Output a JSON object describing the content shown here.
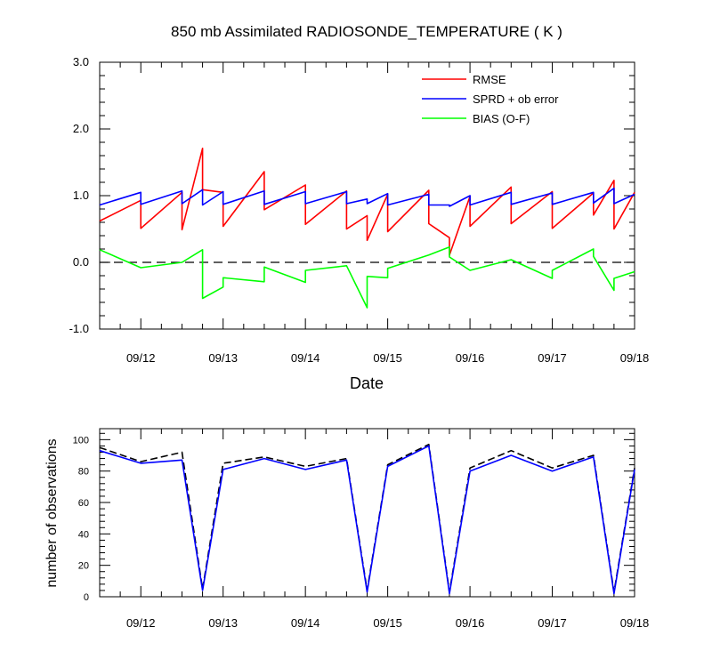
{
  "chart_data": [
    {
      "type": "line",
      "title": "850 mb Assimilated RADIOSONDE_TEMPERATURE ( K )",
      "xlabel": "Date",
      "ylabel": "",
      "xlim": [
        11.5,
        18.0
      ],
      "ylim": [
        -1.0,
        3.0
      ],
      "x_ticks": [
        12,
        13,
        14,
        15,
        16,
        17,
        18
      ],
      "x_tick_labels": [
        "09/12",
        "09/13",
        "09/14",
        "09/15",
        "09/16",
        "09/17",
        "09/18"
      ],
      "y_ticks": [
        -1,
        0,
        1,
        2,
        3
      ],
      "y_tick_labels": [
        "-1.0",
        "0.0",
        "1.0",
        "2.0",
        "3.0"
      ],
      "legend_position": "top-right",
      "reference_line": {
        "y": 0,
        "style": "dashed",
        "color": "#000000"
      },
      "grid": false,
      "series": [
        {
          "name": "RMSE",
          "color": "#ff0000",
          "x": [
            11.5,
            12.0,
            12.0,
            12.5,
            12.5,
            12.75,
            12.75,
            13.0,
            13.0,
            13.5,
            13.5,
            14.0,
            14.0,
            14.5,
            14.5,
            14.75,
            14.75,
            15.0,
            15.0,
            15.5,
            15.5,
            15.75,
            15.75,
            16.0,
            16.0,
            16.5,
            16.5,
            17.0,
            17.0,
            17.5,
            17.5,
            17.75,
            17.75,
            18.0
          ],
          "y": [
            0.62,
            0.93,
            0.51,
            1.05,
            0.49,
            1.71,
            1.09,
            1.05,
            0.54,
            1.36,
            0.79,
            1.16,
            0.57,
            1.07,
            0.5,
            0.7,
            0.33,
            1.02,
            0.46,
            1.08,
            0.58,
            0.37,
            0.11,
            0.99,
            0.54,
            1.13,
            0.58,
            1.06,
            0.51,
            1.04,
            0.71,
            1.23,
            0.5,
            1.05
          ]
        },
        {
          "name": "SPRD + ob error",
          "color": "#0000ff",
          "x": [
            11.5,
            12.0,
            12.0,
            12.5,
            12.5,
            12.75,
            12.75,
            13.0,
            13.0,
            13.5,
            13.5,
            14.0,
            14.0,
            14.5,
            14.5,
            14.75,
            14.75,
            15.0,
            15.0,
            15.5,
            15.5,
            15.75,
            15.75,
            16.0,
            16.0,
            16.5,
            16.5,
            17.0,
            17.0,
            17.5,
            17.5,
            17.75,
            17.75,
            18.0
          ],
          "y": [
            0.86,
            1.05,
            0.87,
            1.07,
            0.88,
            1.09,
            0.86,
            1.06,
            0.87,
            1.07,
            0.87,
            1.06,
            0.88,
            1.06,
            0.88,
            0.95,
            0.88,
            1.03,
            0.86,
            1.02,
            0.86,
            0.86,
            0.84,
            1.0,
            0.86,
            1.05,
            0.87,
            1.04,
            0.87,
            1.05,
            0.89,
            1.11,
            0.88,
            1.02
          ]
        },
        {
          "name": "BIAS (O-F)",
          "color": "#00ff00",
          "x": [
            11.5,
            12.0,
            12.5,
            12.75,
            12.75,
            13.0,
            13.0,
            13.5,
            13.5,
            14.0,
            14.0,
            14.5,
            14.75,
            14.75,
            15.0,
            15.0,
            15.5,
            15.75,
            15.75,
            16.0,
            16.5,
            17.0,
            17.0,
            17.5,
            17.5,
            17.75,
            17.75,
            18.0
          ],
          "y": [
            0.19,
            -0.08,
            0.0,
            0.19,
            -0.54,
            -0.37,
            -0.23,
            -0.29,
            -0.07,
            -0.3,
            -0.12,
            -0.05,
            -0.68,
            -0.21,
            -0.23,
            -0.09,
            0.11,
            0.23,
            0.08,
            -0.12,
            0.04,
            -0.24,
            -0.12,
            0.2,
            0.09,
            -0.42,
            -0.24,
            -0.14
          ]
        }
      ]
    },
    {
      "type": "line",
      "title": "",
      "xlabel": "",
      "ylabel": "number of observations",
      "xlim": [
        11.5,
        18.0
      ],
      "ylim": [
        0,
        107
      ],
      "x_ticks": [
        12,
        13,
        14,
        15,
        16,
        17,
        18
      ],
      "x_tick_labels": [
        "09/12",
        "09/13",
        "09/14",
        "09/15",
        "09/16",
        "09/17",
        "09/18"
      ],
      "y_ticks": [
        0,
        20,
        40,
        60,
        80,
        100
      ],
      "y_tick_labels": [
        "0",
        "20",
        "40",
        "60",
        "80",
        "100"
      ],
      "grid": false,
      "series": [
        {
          "style": "dashed",
          "color": "#000000",
          "x": [
            11.5,
            12.0,
            12.5,
            12.75,
            13.0,
            13.5,
            14.0,
            14.5,
            14.75,
            15.0,
            15.5,
            15.75,
            16.0,
            16.5,
            17.0,
            17.5,
            17.75,
            18.0
          ],
          "y": [
            95,
            86,
            92,
            5,
            85,
            89,
            83,
            88,
            4,
            84,
            97,
            3,
            82,
            93,
            82,
            90,
            3,
            82
          ]
        },
        {
          "style": "solid",
          "color": "#0000ff",
          "x": [
            11.5,
            12.0,
            12.5,
            12.75,
            13.0,
            13.5,
            14.0,
            14.5,
            14.75,
            15.0,
            15.5,
            15.75,
            16.0,
            16.5,
            17.0,
            17.5,
            17.75,
            18.0
          ],
          "y": [
            93,
            85,
            87,
            4,
            81,
            88,
            81,
            87,
            3,
            83,
            96,
            2,
            80,
            90,
            80,
            89,
            2,
            81
          ]
        }
      ]
    }
  ]
}
